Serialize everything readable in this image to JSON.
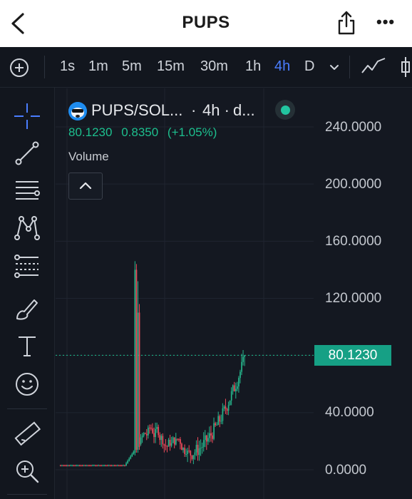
{
  "header": {
    "title": "PUPS",
    "back_icon": "chevron-left-icon",
    "share_icon": "share-icon",
    "more_label": "•••"
  },
  "toolbar": {
    "timeframes": [
      "1s",
      "1m",
      "5m",
      "15m",
      "30m",
      "1h",
      "4h",
      "D"
    ],
    "active_timeframe": "4h",
    "accent_color": "#4a7dff"
  },
  "legend": {
    "pair": "PUPS/SOL...",
    "separator": "·",
    "timeframe": "4h ·",
    "source": "d...",
    "last_price": "80.1230",
    "change": "0.8350",
    "change_percent": "(+1.05%)",
    "volume_label": "Volume",
    "up_color": "#1dbf8e"
  },
  "chart_data": {
    "type": "candlestick",
    "y_ticks": [
      "240.0000",
      "200.0000",
      "160.0000",
      "120.0000",
      "40.0000",
      "0.0000"
    ],
    "ylim": [
      0,
      240
    ],
    "current_price": "80.1230",
    "current_price_value": 80.123,
    "series": [
      {
        "segment": "pre-launch flat",
        "approx_price": 3
      },
      {
        "segment": "spike",
        "high": 146,
        "close_after": 13
      },
      {
        "segment": "consolidation",
        "low": 11,
        "high": 31
      },
      {
        "segment": "uptrend",
        "from": 24,
        "to": 80.123
      }
    ],
    "up_color": "#26b68c",
    "down_color": "#ef4a5a"
  }
}
